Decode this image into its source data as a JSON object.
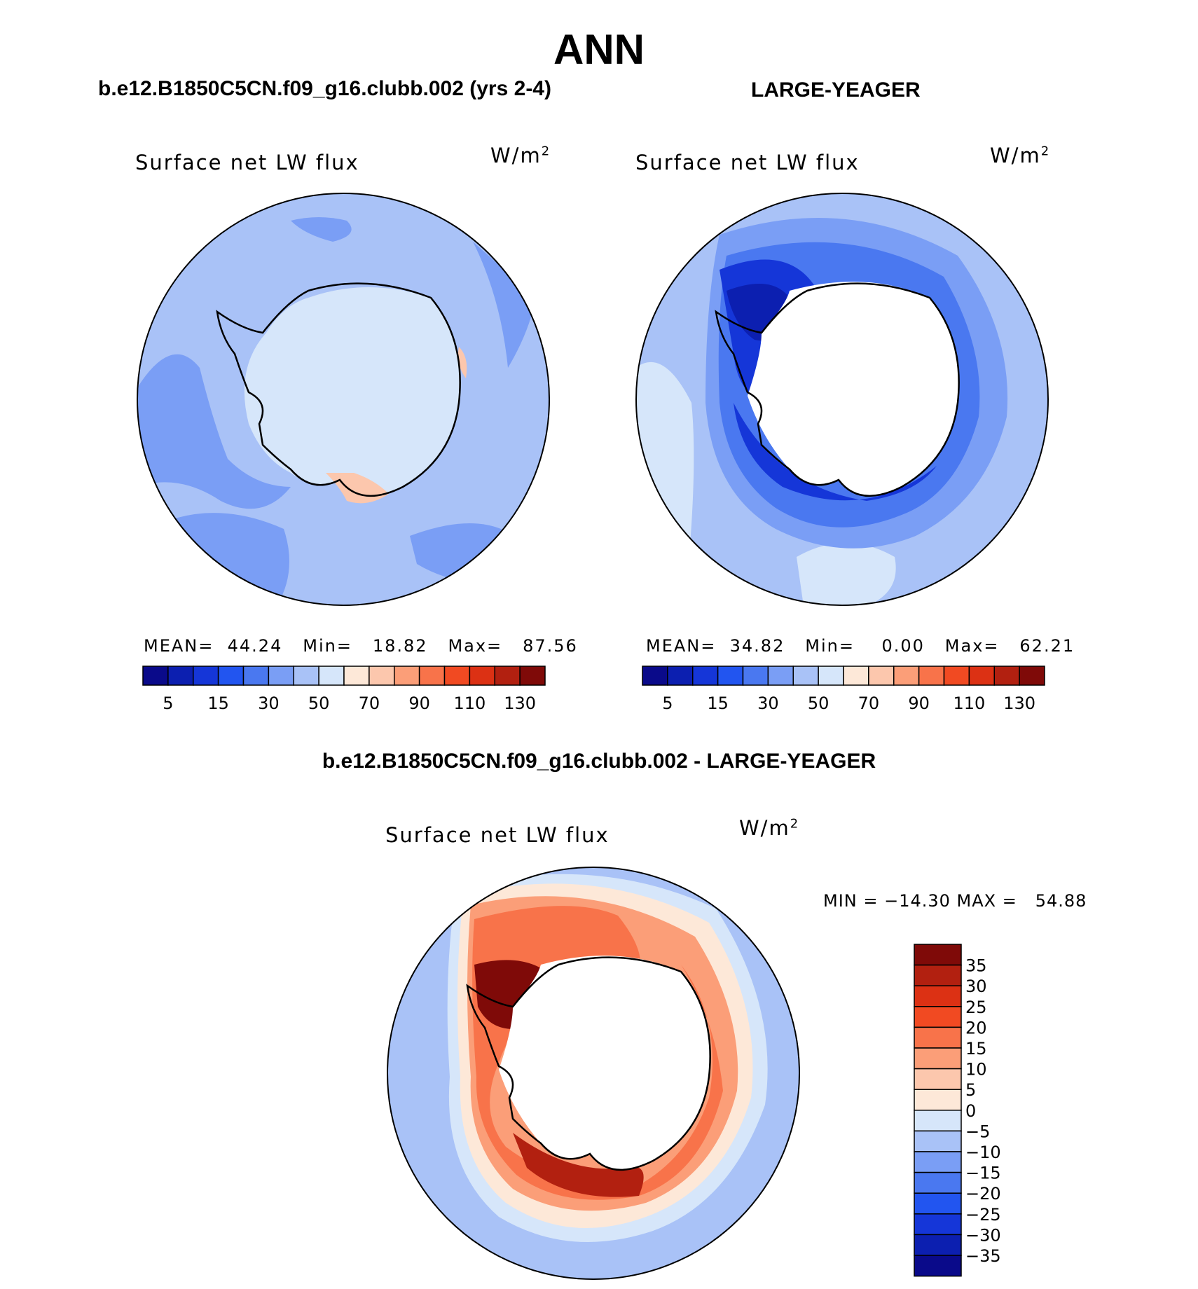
{
  "title": "ANN",
  "panels": [
    {
      "case_title": "b.e12.B1850C5CN.f09_g16.clubb.002 (yrs 2-4)",
      "variable": "Surface net LW flux",
      "units": "W/m",
      "units_sup": "2",
      "stats": {
        "mean_label": "MEAN=",
        "mean": "44.24",
        "min_label": "Min=",
        "min": "18.82",
        "max_label": "Max=",
        "max": "87.56"
      },
      "colorbar_ticks": [
        "5",
        "15",
        "30",
        "50",
        "70",
        "90",
        "110",
        "130"
      ]
    },
    {
      "case_title": "LARGE-YEAGER",
      "variable": "Surface net LW flux",
      "units": "W/m",
      "units_sup": "2",
      "stats": {
        "mean_label": "MEAN=",
        "mean": "34.82",
        "min_label": "Min=",
        "min": "0.00",
        "max_label": "Max=",
        "max": "62.21"
      },
      "colorbar_ticks": [
        "5",
        "15",
        "30",
        "50",
        "70",
        "90",
        "110",
        "130"
      ]
    }
  ],
  "difference": {
    "title": "b.e12.B1850C5CN.f09_g16.clubb.002 - LARGE-YEAGER",
    "variable": "Surface net LW flux",
    "units": "W/m",
    "units_sup": "2",
    "minmax": "MIN = −14.30 MAX =   54.88",
    "colorbar_ticks": [
      "35",
      "30",
      "25",
      "20",
      "15",
      "10",
      "5",
      "0",
      "−5",
      "−10",
      "−15",
      "−20",
      "−25",
      "−30",
      "−35"
    ]
  },
  "colors": {
    "seq": [
      "#0a0a8a",
      "#0c1fb0",
      "#1536d8",
      "#2255f0",
      "#4a78f0",
      "#7a9ef5",
      "#a9c2f7",
      "#d6e6fa",
      "#fde8d8",
      "#fcc7ad",
      "#fb9e78",
      "#f8734a",
      "#f14a22",
      "#dc3114",
      "#b22010",
      "#7f0a08"
    ],
    "div": [
      "#7f0a08",
      "#b22010",
      "#dc3114",
      "#f14a22",
      "#f8734a",
      "#fb9e78",
      "#fcc7ad",
      "#fde8d8",
      "#d6e6fa",
      "#a9c2f7",
      "#7a9ef5",
      "#4a78f0",
      "#2255f0",
      "#1536d8",
      "#0c1fb0",
      "#0a0a8a"
    ]
  }
}
